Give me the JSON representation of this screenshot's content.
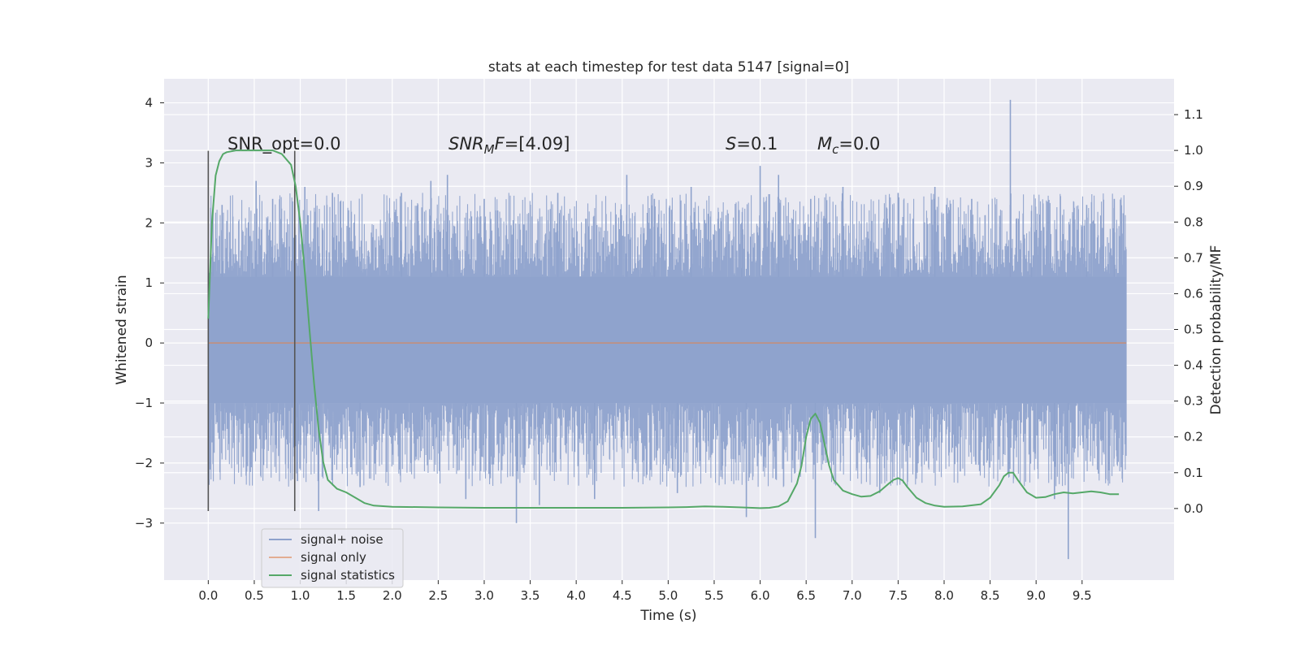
{
  "chart_data": {
    "type": "line",
    "title": "stats at each timestep for test data 5147 [signal=0]",
    "xlabel": "Time (s)",
    "ylabel_left": "Whitened strain",
    "ylabel_right": "Detection probability/MF",
    "xlim": [
      -0.48,
      10.5
    ],
    "ylim_left": [
      -3.95,
      4.4
    ],
    "ylim_right": [
      -0.2,
      1.2
    ],
    "x_ticks": [
      0.0,
      0.5,
      1.0,
      1.5,
      2.0,
      2.5,
      3.0,
      3.5,
      4.0,
      4.5,
      5.0,
      5.5,
      6.0,
      6.5,
      7.0,
      7.5,
      8.0,
      8.5,
      9.0,
      9.5
    ],
    "x_tick_labels": [
      "0.0",
      "0.5",
      "1.0",
      "1.5",
      "2.0",
      "2.5",
      "3.0",
      "3.5",
      "4.0",
      "4.5",
      "5.0",
      "5.5",
      "6.0",
      "6.5",
      "7.0",
      "7.5",
      "8.0",
      "8.5",
      "9.0",
      "9.5"
    ],
    "y_left_ticks": [
      -3,
      -2,
      -1,
      0,
      1,
      2,
      3,
      4
    ],
    "y_left_tick_labels": [
      "−3",
      "−2",
      "−1",
      "0",
      "1",
      "2",
      "3",
      "4"
    ],
    "y_right_ticks": [
      0.0,
      0.1,
      0.2,
      0.3,
      0.4,
      0.5,
      0.6,
      0.7,
      0.8,
      0.9,
      1.0,
      1.1
    ],
    "y_right_tick_labels": [
      "0.0",
      "0.1",
      "0.2",
      "0.3",
      "0.4",
      "0.5",
      "0.6",
      "0.7",
      "0.8",
      "0.9",
      "1.0",
      "1.1"
    ],
    "annotations": [
      {
        "id": "snr-opt",
        "text": "SNR_opt=0.0",
        "x": 0.2,
        "y_right": 1.0
      },
      {
        "id": "snr-mf",
        "text": "=[4.09]",
        "x": 2.6,
        "y_right": 1.0,
        "main": "SNR",
        "sub": "M",
        "after": "F"
      },
      {
        "id": "s",
        "text": "=0.1",
        "x": 5.6,
        "y_right": 1.0,
        "main": "S"
      },
      {
        "id": "mc",
        "text": "=0.0",
        "x": 6.6,
        "y_right": 1.0,
        "main": "M",
        "sub": "c"
      }
    ],
    "vlines": [
      {
        "x": 0.0,
        "y_range": [
          -2.8,
          3.2
        ]
      },
      {
        "x": 0.94,
        "y_range": [
          -2.8,
          3.2
        ]
      }
    ],
    "series": [
      {
        "name": "signal+ noise",
        "axis": "left",
        "color": "#8ea2cc",
        "x_range": [
          0.0,
          9.98
        ],
        "envelope": {
          "upper": 1.1,
          "lower": -1.0
        },
        "spikes": [
          {
            "x": 0.05,
            "y": 2.2
          },
          {
            "x": 0.15,
            "y": 2.3
          },
          {
            "x": 0.52,
            "y": 2.7
          },
          {
            "x": 0.7,
            "y": 2.4
          },
          {
            "x": 0.97,
            "y": -2.3
          },
          {
            "x": 1.05,
            "y": 2.6
          },
          {
            "x": 1.2,
            "y": -2.8
          },
          {
            "x": 1.35,
            "y": 2.5
          },
          {
            "x": 1.65,
            "y": -2.4
          },
          {
            "x": 2.1,
            "y": 2.5
          },
          {
            "x": 2.42,
            "y": 2.7
          },
          {
            "x": 2.6,
            "y": 2.8
          },
          {
            "x": 2.8,
            "y": -2.6
          },
          {
            "x": 3.0,
            "y": 2.4
          },
          {
            "x": 3.35,
            "y": -3.0
          },
          {
            "x": 3.6,
            "y": -2.7
          },
          {
            "x": 3.8,
            "y": 2.5
          },
          {
            "x": 4.2,
            "y": -2.6
          },
          {
            "x": 4.55,
            "y": 2.8
          },
          {
            "x": 4.85,
            "y": 2.4
          },
          {
            "x": 5.1,
            "y": -2.5
          },
          {
            "x": 5.25,
            "y": 2.6
          },
          {
            "x": 5.8,
            "y": 2.0
          },
          {
            "x": 5.85,
            "y": -2.9
          },
          {
            "x": 6.0,
            "y": 2.95
          },
          {
            "x": 6.2,
            "y": 2.8
          },
          {
            "x": 6.55,
            "y": 2.4
          },
          {
            "x": 6.6,
            "y": -3.25
          },
          {
            "x": 6.9,
            "y": 2.6
          },
          {
            "x": 7.3,
            "y": -2.5
          },
          {
            "x": 7.5,
            "y": 2.5
          },
          {
            "x": 7.9,
            "y": 2.6
          },
          {
            "x": 8.3,
            "y": 2.4
          },
          {
            "x": 8.72,
            "y": 4.05
          },
          {
            "x": 8.95,
            "y": 2.2
          },
          {
            "x": 9.2,
            "y": -2.6
          },
          {
            "x": 9.35,
            "y": -3.6
          },
          {
            "x": 9.55,
            "y": 2.3
          },
          {
            "x": 9.85,
            "y": 2.4
          }
        ]
      },
      {
        "name": "signal only",
        "axis": "left",
        "color": "#dd8452",
        "x": [
          0.0,
          9.98
        ],
        "y": [
          0.0,
          0.0
        ]
      },
      {
        "name": "signal statistics",
        "axis": "right",
        "color": "#55a868",
        "x": [
          0.0,
          0.04,
          0.08,
          0.12,
          0.16,
          0.2,
          0.3,
          0.4,
          0.5,
          0.6,
          0.7,
          0.8,
          0.9,
          0.95,
          1.0,
          1.05,
          1.1,
          1.15,
          1.2,
          1.25,
          1.3,
          1.4,
          1.5,
          1.6,
          1.7,
          1.8,
          2.0,
          2.5,
          3.0,
          3.5,
          4.0,
          4.5,
          5.0,
          5.2,
          5.4,
          5.6,
          5.8,
          6.0,
          6.1,
          6.2,
          6.3,
          6.4,
          6.45,
          6.5,
          6.55,
          6.6,
          6.65,
          6.7,
          6.75,
          6.8,
          6.9,
          7.0,
          7.1,
          7.2,
          7.3,
          7.4,
          7.45,
          7.5,
          7.55,
          7.6,
          7.7,
          7.8,
          7.9,
          8.0,
          8.2,
          8.4,
          8.5,
          8.6,
          8.65,
          8.7,
          8.75,
          8.8,
          8.9,
          9.0,
          9.1,
          9.2,
          9.3,
          9.4,
          9.5,
          9.6,
          9.7,
          9.8,
          9.9
        ],
        "y": [
          0.53,
          0.8,
          0.93,
          0.97,
          0.99,
          0.995,
          1.0,
          1.0,
          1.0,
          1.0,
          1.0,
          0.99,
          0.96,
          0.9,
          0.8,
          0.66,
          0.5,
          0.35,
          0.22,
          0.13,
          0.08,
          0.055,
          0.045,
          0.03,
          0.015,
          0.008,
          0.005,
          0.003,
          0.002,
          0.002,
          0.002,
          0.002,
          0.003,
          0.004,
          0.006,
          0.005,
          0.003,
          0.001,
          0.002,
          0.006,
          0.02,
          0.07,
          0.12,
          0.2,
          0.25,
          0.265,
          0.24,
          0.18,
          0.12,
          0.08,
          0.05,
          0.04,
          0.033,
          0.035,
          0.048,
          0.07,
          0.08,
          0.085,
          0.078,
          0.06,
          0.03,
          0.015,
          0.008,
          0.005,
          0.006,
          0.012,
          0.03,
          0.065,
          0.09,
          0.1,
          0.1,
          0.08,
          0.045,
          0.03,
          0.032,
          0.04,
          0.045,
          0.042,
          0.045,
          0.048,
          0.045,
          0.04,
          0.04
        ]
      }
    ],
    "legend": {
      "position": "lower-left",
      "entries": [
        "signal+ noise",
        "signal only",
        "signal statistics"
      ]
    },
    "grid": true
  }
}
